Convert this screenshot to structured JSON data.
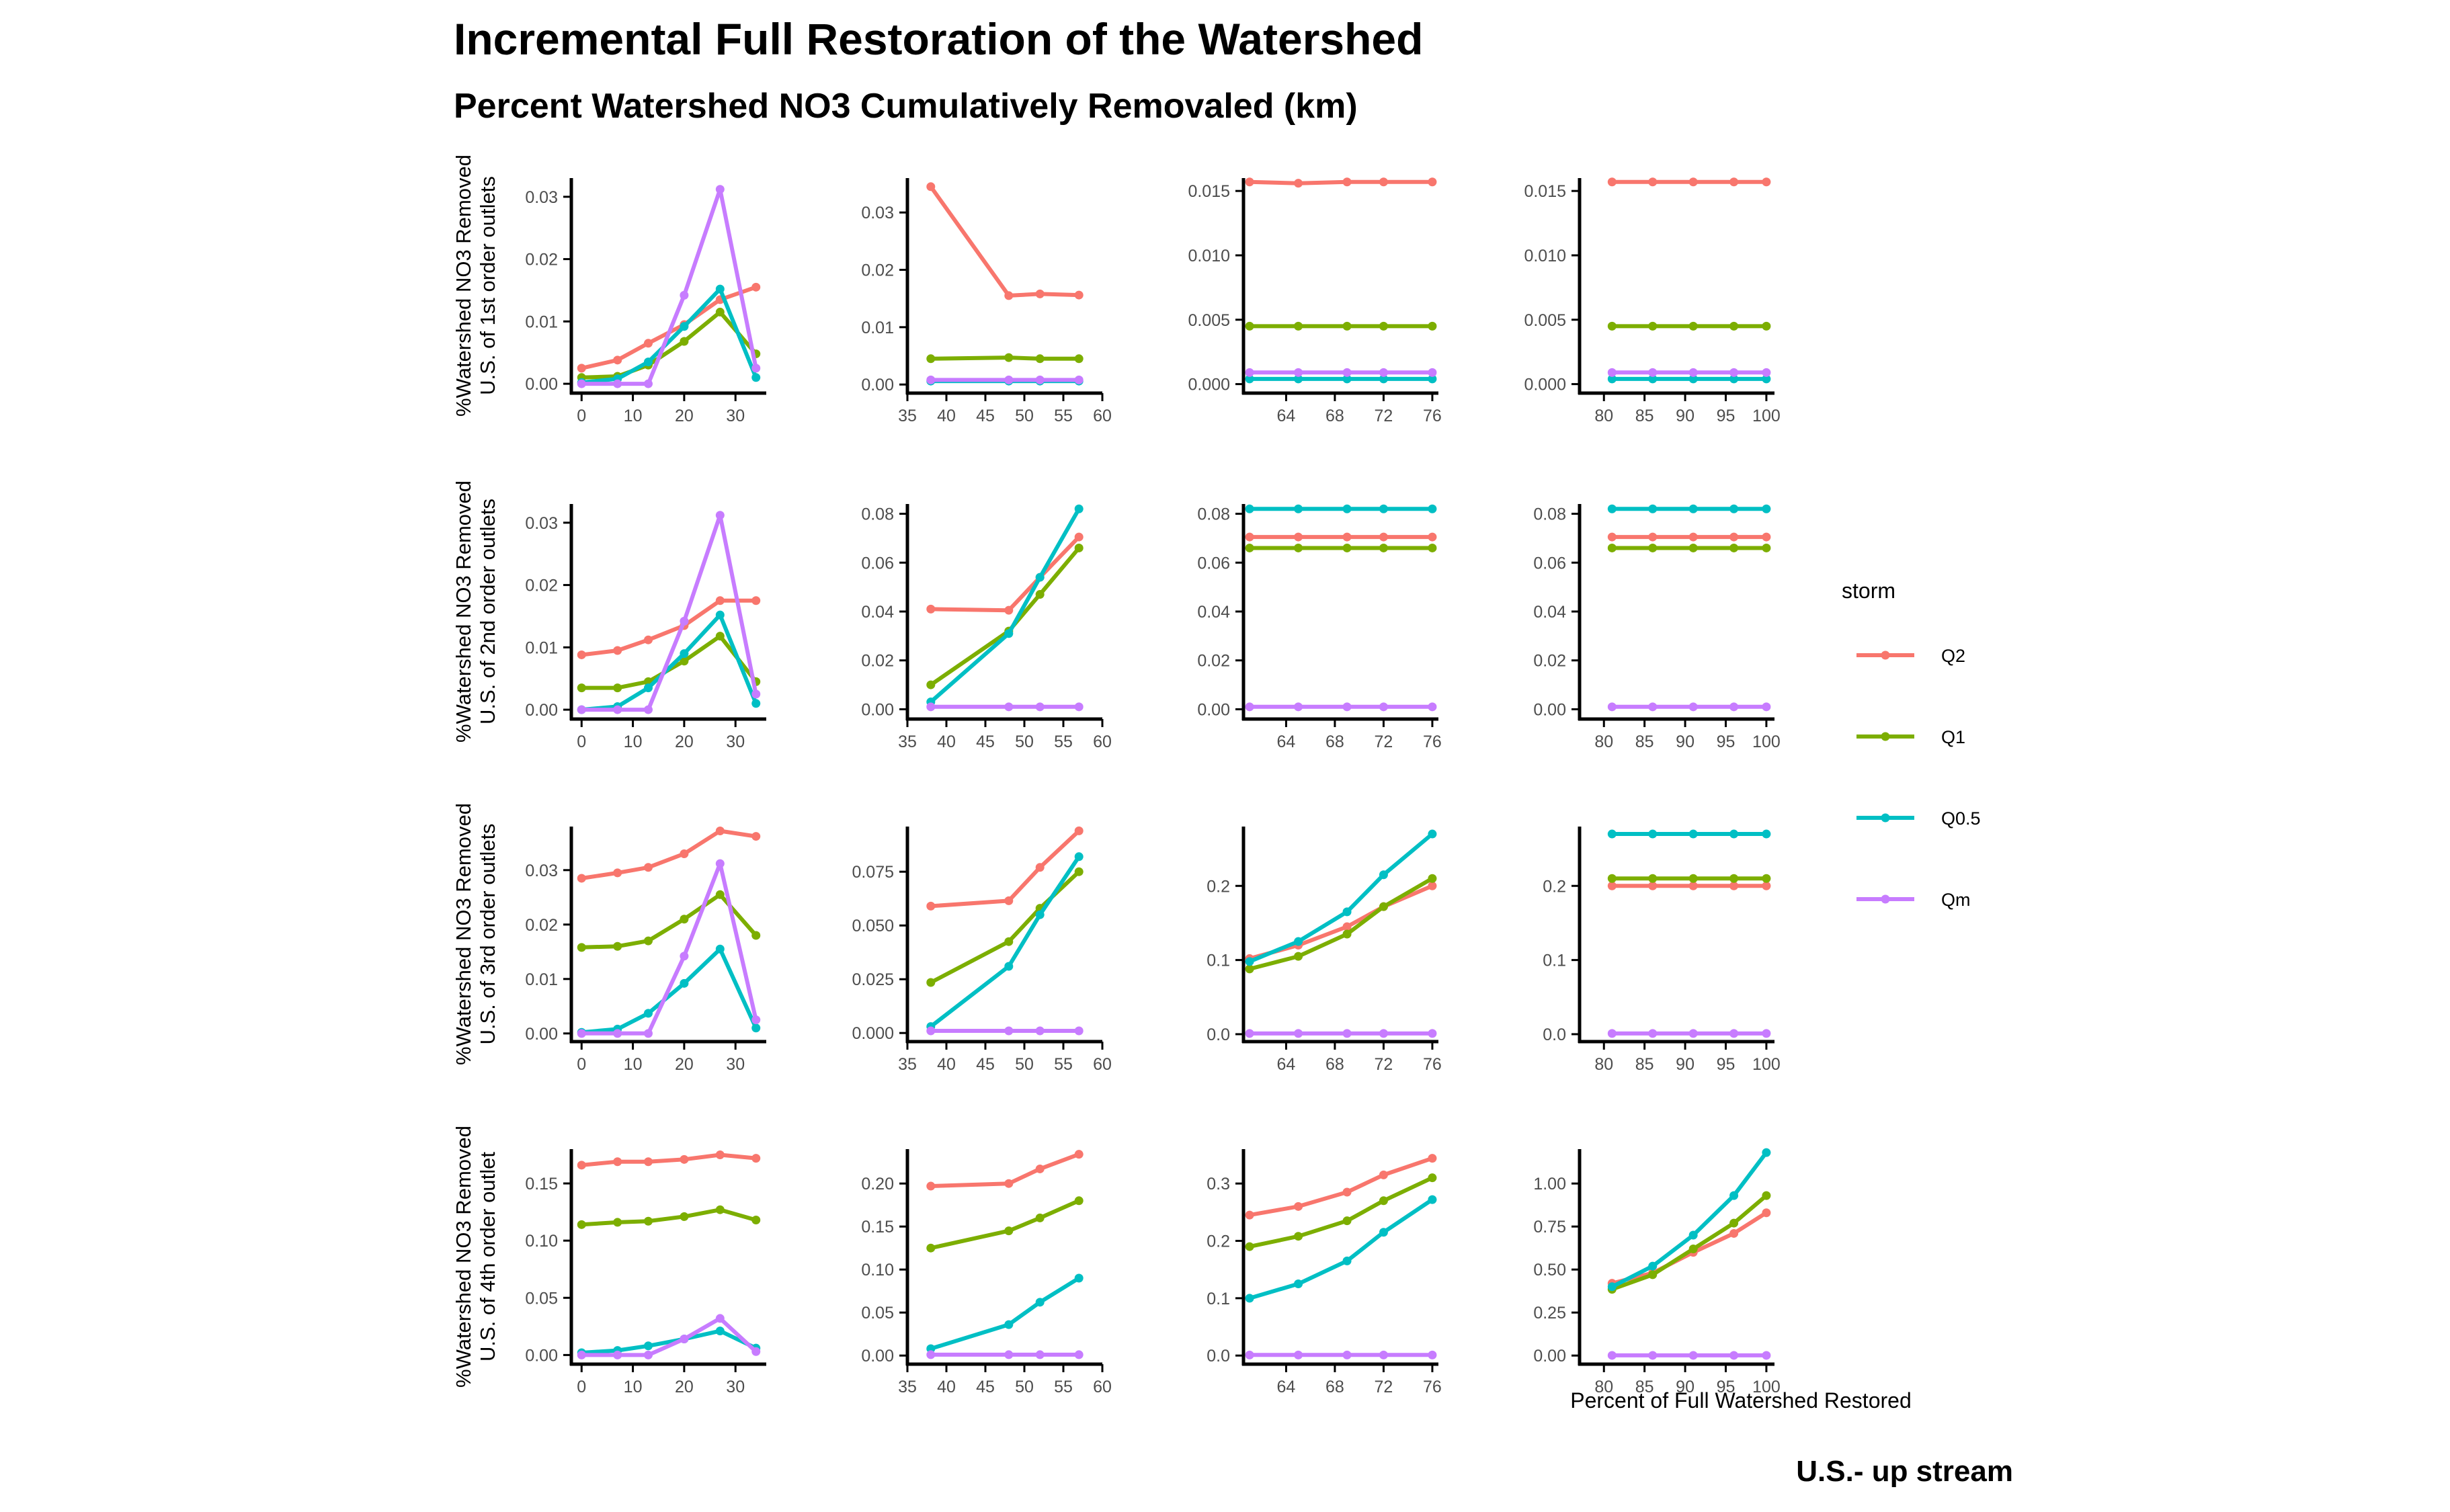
{
  "title": "Incremental Full Restoration of the Watershed",
  "subtitle": "Percent Watershed NO3 Cumulatively Removaled (km)",
  "caption": "U.S.- up stream",
  "chart_data": {
    "type": "line",
    "xlabel": "Percent of Full Watershed Restored",
    "row_labels": [
      [
        "%Watershed NO3 Removed",
        "U.S. of 1st order outlets"
      ],
      [
        "%Watershed NO3 Removed",
        "U.S. of 2nd order outlets"
      ],
      [
        "%Watershed NO3 Removed",
        "U.S. of 3rd order outlets"
      ],
      [
        "%Watershed NO3 Removed",
        "U.S. of 4th order outlet"
      ]
    ],
    "legend": {
      "title": "storm",
      "position": "right",
      "entries": [
        {
          "name": "Q2",
          "color": "#F8766D"
        },
        {
          "name": "Q1",
          "color": "#7CAE00"
        },
        {
          "name": "Q0.5",
          "color": "#00BFC4"
        },
        {
          "name": "Qm",
          "color": "#C77CFF"
        }
      ]
    },
    "columns": [
      {
        "xlim": [
          -2,
          36
        ],
        "xticks": [
          0,
          10,
          20,
          30
        ],
        "x": [
          0,
          7,
          13,
          20,
          27,
          34
        ]
      },
      {
        "xlim": [
          35,
          60
        ],
        "xticks": [
          35,
          40,
          45,
          50,
          55,
          60
        ],
        "x": [
          38,
          48,
          52,
          57
        ]
      },
      {
        "xlim": [
          60.5,
          76.5
        ],
        "xticks": [
          64,
          68,
          72,
          76
        ],
        "x": [
          61,
          65,
          69,
          72,
          76
        ]
      },
      {
        "xlim": [
          77,
          101
        ],
        "xticks": [
          80,
          85,
          90,
          95,
          100
        ],
        "x": [
          81,
          86,
          91,
          96,
          100
        ]
      }
    ],
    "panels": [
      [
        {
          "ylim": [
            -0.0015,
            0.033
          ],
          "yticks": [
            "0.00",
            "0.01",
            "0.02",
            "0.03"
          ],
          "yvals": [
            0,
            0.01,
            0.02,
            0.03
          ],
          "series": {
            "Q2": [
              0.0025,
              0.0038,
              0.0065,
              0.0095,
              0.0135,
              0.0155
            ],
            "Q1": [
              0.001,
              0.0012,
              0.003,
              0.0068,
              0.0115,
              0.0048
            ],
            "Q0.5": [
              0.0002,
              0.0008,
              0.0035,
              0.0092,
              0.0152,
              0.001
            ],
            "Qm": [
              0,
              0,
              0,
              0.0142,
              0.0312,
              0.0025
            ]
          }
        },
        {
          "ylim": [
            -0.0015,
            0.036
          ],
          "yticks": [
            "0.00",
            "0.01",
            "0.02",
            "0.03"
          ],
          "yvals": [
            0,
            0.01,
            0.02,
            0.03
          ],
          "series": {
            "Q2": [
              0.0345,
              0.0155,
              0.0158,
              0.0156
            ],
            "Q1": [
              0.0045,
              0.0047,
              0.0045,
              0.0045
            ],
            "Q0.5": [
              0.0006,
              0.0006,
              0.0006,
              0.0006
            ],
            "Qm": [
              0.0008,
              0.0008,
              0.0008,
              0.0008
            ]
          }
        },
        {
          "ylim": [
            -0.0007,
            0.016
          ],
          "yticks": [
            "0.000",
            "0.005",
            "0.010",
            "0.015"
          ],
          "yvals": [
            0,
            0.005,
            0.01,
            0.015
          ],
          "series": {
            "Q2": [
              0.0157,
              0.0156,
              0.0157,
              0.0157,
              0.0157
            ],
            "Q1": [
              0.0045,
              0.0045,
              0.0045,
              0.0045,
              0.0045
            ],
            "Q0.5": [
              0.0004,
              0.0004,
              0.0004,
              0.0004,
              0.0004
            ],
            "Qm": [
              0.0009,
              0.0009,
              0.0009,
              0.0009,
              0.0009
            ]
          }
        },
        {
          "ylim": [
            -0.0007,
            0.016
          ],
          "yticks": [
            "0.000",
            "0.005",
            "0.010",
            "0.015"
          ],
          "yvals": [
            0,
            0.005,
            0.01,
            0.015
          ],
          "series": {
            "Q2": [
              0.0157,
              0.0157,
              0.0157,
              0.0157,
              0.0157
            ],
            "Q1": [
              0.0045,
              0.0045,
              0.0045,
              0.0045,
              0.0045
            ],
            "Q0.5": [
              0.0004,
              0.0004,
              0.0004,
              0.0004,
              0.0004
            ],
            "Qm": [
              0.0009,
              0.0009,
              0.0009,
              0.0009,
              0.0009
            ]
          }
        }
      ],
      [
        {
          "ylim": [
            -0.0015,
            0.033
          ],
          "yticks": [
            "0.00",
            "0.01",
            "0.02",
            "0.03"
          ],
          "yvals": [
            0,
            0.01,
            0.02,
            0.03
          ],
          "series": {
            "Q2": [
              0.0088,
              0.0095,
              0.0112,
              0.0135,
              0.0175,
              0.0175
            ],
            "Q1": [
              0.0035,
              0.0035,
              0.0045,
              0.0078,
              0.0118,
              0.0045
            ],
            "Q0.5": [
              0,
              0.0005,
              0.0035,
              0.009,
              0.0152,
              0.001
            ],
            "Qm": [
              0,
              0,
              0,
              0.0142,
              0.0312,
              0.0025
            ]
          }
        },
        {
          "ylim": [
            -0.004,
            0.084
          ],
          "yticks": [
            "0.00",
            "0.02",
            "0.04",
            "0.06",
            "0.08"
          ],
          "yvals": [
            0,
            0.02,
            0.04,
            0.06,
            0.08
          ],
          "series": {
            "Q2": [
              0.041,
              0.0405,
              0.054,
              0.0705
            ],
            "Q1": [
              0.01,
              0.032,
              0.047,
              0.066
            ],
            "Q0.5": [
              0.003,
              0.031,
              0.054,
              0.082
            ],
            "Qm": [
              0.001,
              0.001,
              0.001,
              0.001
            ]
          }
        },
        {
          "ylim": [
            -0.004,
            0.084
          ],
          "yticks": [
            "0.00",
            "0.02",
            "0.04",
            "0.06",
            "0.08"
          ],
          "yvals": [
            0,
            0.02,
            0.04,
            0.06,
            0.08
          ],
          "series": {
            "Q2": [
              0.0705,
              0.0705,
              0.0705,
              0.0705,
              0.0705
            ],
            "Q1": [
              0.066,
              0.066,
              0.066,
              0.066,
              0.066
            ],
            "Q0.5": [
              0.082,
              0.082,
              0.082,
              0.082,
              0.082
            ],
            "Qm": [
              0.001,
              0.001,
              0.001,
              0.001,
              0.001
            ]
          }
        },
        {
          "ylim": [
            -0.004,
            0.084
          ],
          "yticks": [
            "0.00",
            "0.02",
            "0.04",
            "0.06",
            "0.08"
          ],
          "yvals": [
            0,
            0.02,
            0.04,
            0.06,
            0.08
          ],
          "series": {
            "Q2": [
              0.0705,
              0.0705,
              0.0705,
              0.0705,
              0.0705
            ],
            "Q1": [
              0.066,
              0.066,
              0.066,
              0.066,
              0.066
            ],
            "Q0.5": [
              0.082,
              0.082,
              0.082,
              0.082,
              0.082
            ],
            "Qm": [
              0.001,
              0.001,
              0.001,
              0.001,
              0.001
            ]
          }
        }
      ],
      [
        {
          "ylim": [
            -0.0015,
            0.038
          ],
          "yticks": [
            "0.00",
            "0.01",
            "0.02",
            "0.03"
          ],
          "yvals": [
            0,
            0.01,
            0.02,
            0.03
          ],
          "series": {
            "Q2": [
              0.0285,
              0.0295,
              0.0305,
              0.033,
              0.0372,
              0.0362
            ],
            "Q1": [
              0.0158,
              0.016,
              0.017,
              0.021,
              0.0255,
              0.018
            ],
            "Q0.5": [
              0.0002,
              0.0008,
              0.0037,
              0.0092,
              0.0155,
              0.001
            ],
            "Qm": [
              0,
              0,
              0,
              0.0142,
              0.0312,
              0.0025
            ]
          }
        },
        {
          "ylim": [
            -0.004,
            0.096
          ],
          "yticks": [
            "0.000",
            "0.025",
            "0.050",
            "0.075"
          ],
          "yvals": [
            0,
            0.025,
            0.05,
            0.075
          ],
          "series": {
            "Q2": [
              0.059,
              0.0615,
              0.077,
              0.094
            ],
            "Q1": [
              0.0235,
              0.0425,
              0.058,
              0.075
            ],
            "Q0.5": [
              0.003,
              0.031,
              0.055,
              0.082
            ],
            "Qm": [
              0.001,
              0.001,
              0.001,
              0.001
            ]
          }
        },
        {
          "ylim": [
            -0.01,
            0.28
          ],
          "yticks": [
            "0.0",
            "0.1",
            "0.2"
          ],
          "yvals": [
            0,
            0.1,
            0.2
          ],
          "series": {
            "Q2": [
              0.102,
              0.12,
              0.145,
              0.172,
              0.2
            ],
            "Q1": [
              0.088,
              0.105,
              0.135,
              0.172,
              0.21
            ],
            "Q0.5": [
              0.098,
              0.125,
              0.165,
              0.215,
              0.27
            ],
            "Qm": [
              0.001,
              0.001,
              0.001,
              0.001,
              0.001
            ]
          }
        },
        {
          "ylim": [
            -0.01,
            0.28
          ],
          "yticks": [
            "0.0",
            "0.1",
            "0.2"
          ],
          "yvals": [
            0,
            0.1,
            0.2
          ],
          "series": {
            "Q2": [
              0.2,
              0.2,
              0.2,
              0.2,
              0.2
            ],
            "Q1": [
              0.21,
              0.21,
              0.21,
              0.21,
              0.21
            ],
            "Q0.5": [
              0.27,
              0.27,
              0.27,
              0.27,
              0.27
            ],
            "Qm": [
              0.001,
              0.001,
              0.001,
              0.001,
              0.001
            ]
          }
        }
      ],
      [
        {
          "ylim": [
            -0.008,
            0.18
          ],
          "yticks": [
            "0.00",
            "0.05",
            "0.10",
            "0.15"
          ],
          "yvals": [
            0,
            0.05,
            0.1,
            0.15
          ],
          "series": {
            "Q2": [
              0.166,
              0.169,
              0.169,
              0.171,
              0.175,
              0.172
            ],
            "Q1": [
              0.114,
              0.116,
              0.117,
              0.121,
              0.127,
              0.118
            ],
            "Q0.5": [
              0.002,
              0.004,
              0.008,
              0.014,
              0.021,
              0.006
            ],
            "Qm": [
              0,
              0,
              0,
              0.014,
              0.032,
              0.003
            ]
          }
        },
        {
          "ylim": [
            -0.01,
            0.24
          ],
          "yticks": [
            "0.00",
            "0.05",
            "0.10",
            "0.15",
            "0.20"
          ],
          "yvals": [
            0,
            0.05,
            0.1,
            0.15,
            0.2
          ],
          "series": {
            "Q2": [
              0.197,
              0.2,
              0.217,
              0.234
            ],
            "Q1": [
              0.125,
              0.145,
              0.16,
              0.18
            ],
            "Q0.5": [
              0.008,
              0.036,
              0.062,
              0.09
            ],
            "Qm": [
              0.001,
              0.001,
              0.001,
              0.001
            ]
          }
        },
        {
          "ylim": [
            -0.015,
            0.36
          ],
          "yticks": [
            "0.0",
            "0.1",
            "0.2",
            "0.3"
          ],
          "yvals": [
            0,
            0.1,
            0.2,
            0.3
          ],
          "series": {
            "Q2": [
              0.245,
              0.26,
              0.285,
              0.315,
              0.344
            ],
            "Q1": [
              0.19,
              0.208,
              0.235,
              0.27,
              0.31
            ],
            "Q0.5": [
              0.1,
              0.125,
              0.165,
              0.215,
              0.272
            ],
            "Qm": [
              0.001,
              0.001,
              0.001,
              0.001,
              0.001
            ]
          }
        },
        {
          "ylim": [
            -0.05,
            1.2
          ],
          "yticks": [
            "0.00",
            "0.25",
            "0.50",
            "0.75",
            "1.00"
          ],
          "yvals": [
            0,
            0.25,
            0.5,
            0.75,
            1.0
          ],
          "series": {
            "Q2": [
              0.42,
              0.48,
              0.6,
              0.71,
              0.83
            ],
            "Q1": [
              0.385,
              0.47,
              0.62,
              0.77,
              0.93
            ],
            "Q0.5": [
              0.4,
              0.52,
              0.7,
              0.93,
              1.18
            ],
            "Qm": [
              0.001,
              0.001,
              0.001,
              0.001,
              0.001
            ]
          }
        }
      ]
    ]
  }
}
